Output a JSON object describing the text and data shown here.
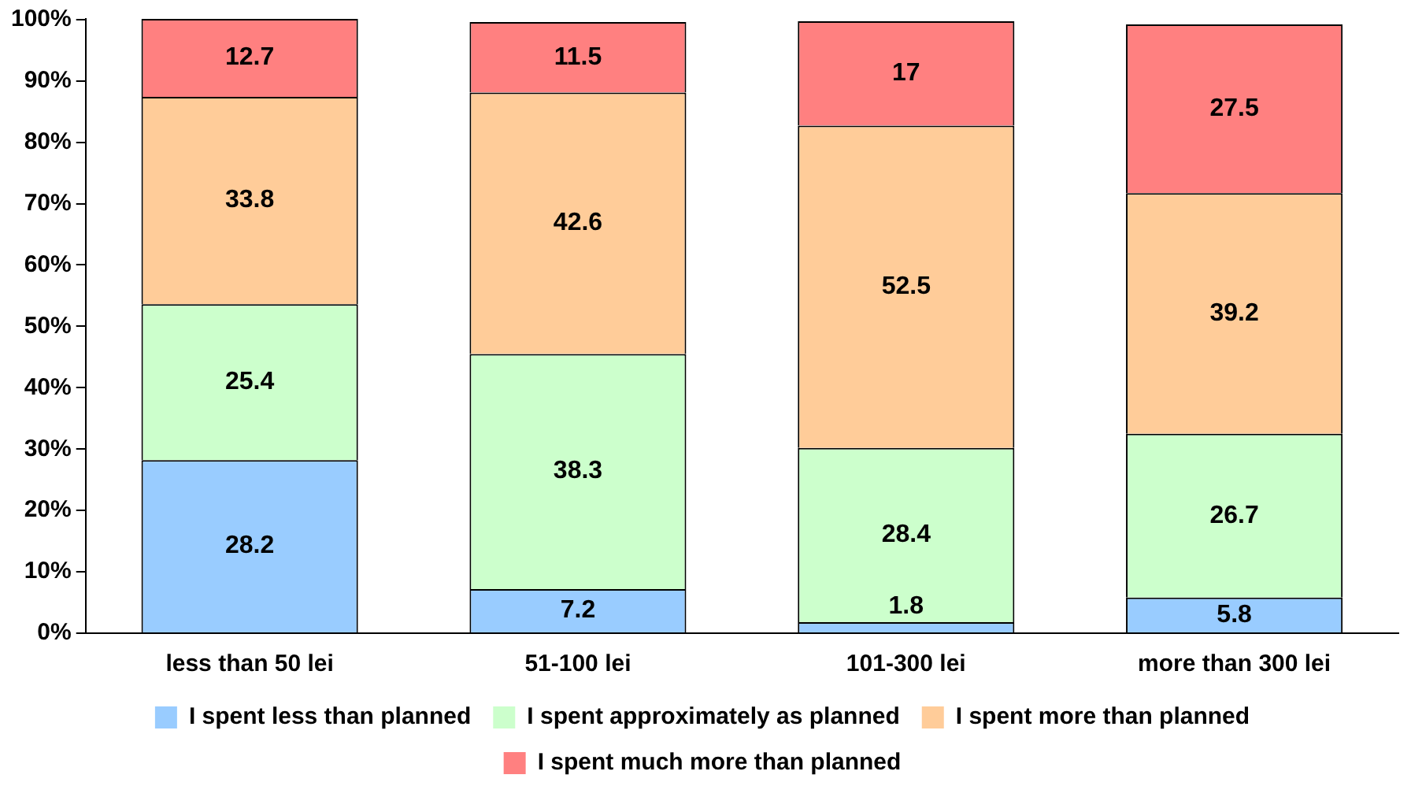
{
  "chart_data": {
    "type": "bar",
    "stacked": true,
    "categories": [
      "less than 50 lei",
      "51-100 lei",
      "101-300 lei",
      "more than 300 lei"
    ],
    "series": [
      {
        "name": "I spent less than planned",
        "color": "#99ccff",
        "values": [
          28.2,
          7.2,
          1.8,
          5.8
        ]
      },
      {
        "name": "I spent approximately as planned",
        "color": "#ccffcc",
        "values": [
          25.4,
          38.3,
          28.4,
          26.7
        ]
      },
      {
        "name": "I spent more than planned",
        "color": "#ffcc99",
        "values": [
          33.8,
          42.6,
          52.5,
          39.2
        ]
      },
      {
        "name": "I spent much more than planned",
        "color": "#ff8080",
        "values": [
          12.7,
          11.5,
          17,
          27.5
        ]
      }
    ],
    "ylim": [
      0,
      100.1
    ],
    "yticks": [
      {
        "value": 0,
        "label": "0%"
      },
      {
        "value": 10,
        "label": "10%"
      },
      {
        "value": 20,
        "label": "20%"
      },
      {
        "value": 30,
        "label": "30%"
      },
      {
        "value": 40,
        "label": "40%"
      },
      {
        "value": 50,
        "label": "50%"
      },
      {
        "value": 60,
        "label": "60%"
      },
      {
        "value": 70,
        "label": "70%"
      },
      {
        "value": 80,
        "label": "80%"
      },
      {
        "value": 90,
        "label": "90%"
      },
      {
        "value": 100,
        "label": "100%"
      }
    ],
    "grid": false,
    "legend": "bottom",
    "data_labels": true
  }
}
